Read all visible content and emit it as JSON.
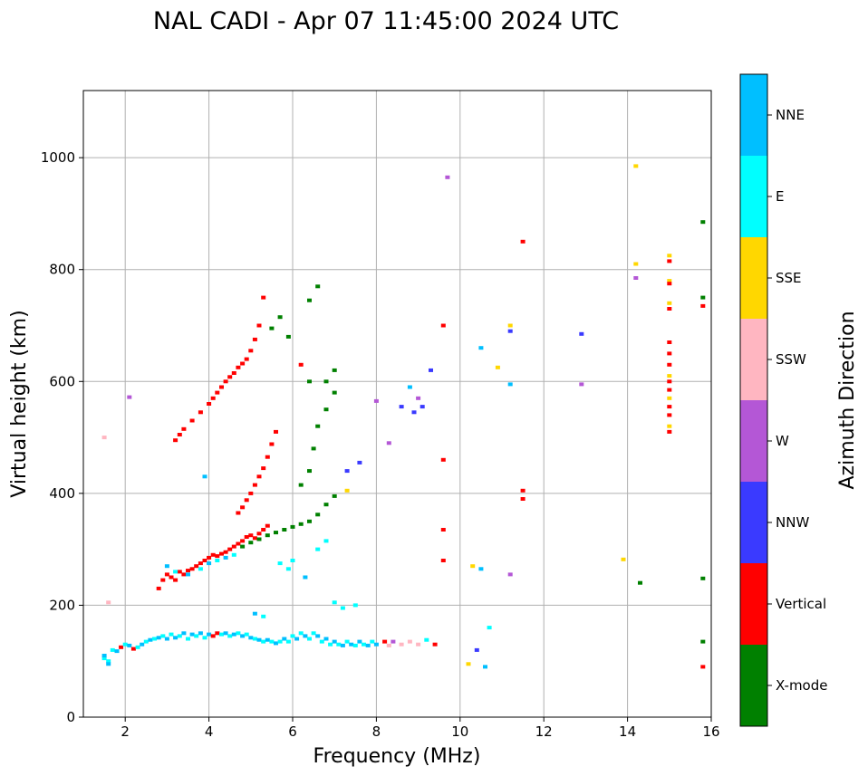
{
  "chart_data": {
    "type": "scatter",
    "title": "NAL CADI - Apr 07 11:45:00 2024 UTC",
    "xlabel": "Frequency (MHz)",
    "ylabel": "Virtual height (km)",
    "xlim": [
      1,
      16
    ],
    "ylim": [
      0,
      1120
    ],
    "grid": true,
    "x_ticks": [
      "2",
      "4",
      "6",
      "8",
      "10",
      "12",
      "14",
      "16"
    ],
    "y_ticks": [
      "0",
      "200",
      "400",
      "600",
      "800",
      "1000"
    ],
    "colorbar": {
      "label": "Azimuth Direction",
      "categories": [
        {
          "name": "X-mode",
          "color": "#008000"
        },
        {
          "name": "Vertical",
          "color": "#ff0000"
        },
        {
          "name": "NNW",
          "color": "#3a3aff"
        },
        {
          "name": "W",
          "color": "#b457d6"
        },
        {
          "name": "SSW",
          "color": "#ffb6c1"
        },
        {
          "name": "SSE",
          "color": "#ffd700"
        },
        {
          "name": "E",
          "color": "#00ffff"
        },
        {
          "name": "NNE",
          "color": "#00bfff"
        }
      ]
    },
    "points": [
      [
        1.5,
        105,
        "E"
      ],
      [
        1.5,
        110,
        "NNE"
      ],
      [
        1.6,
        100,
        "E"
      ],
      [
        1.6,
        95,
        "NNE"
      ],
      [
        1.7,
        120,
        "E"
      ],
      [
        1.8,
        118,
        "NNE"
      ],
      [
        1.9,
        125,
        "Vertical"
      ],
      [
        2.0,
        130,
        "E"
      ],
      [
        2.1,
        128,
        "NNE"
      ],
      [
        2.2,
        122,
        "Vertical"
      ],
      [
        2.3,
        125,
        "E"
      ],
      [
        2.4,
        130,
        "NNE"
      ],
      [
        2.5,
        135,
        "E"
      ],
      [
        2.6,
        138,
        "NNE"
      ],
      [
        2.7,
        140,
        "E"
      ],
      [
        2.8,
        142,
        "NNE"
      ],
      [
        2.9,
        145,
        "E"
      ],
      [
        3.0,
        140,
        "NNE"
      ],
      [
        3.1,
        148,
        "E"
      ],
      [
        3.2,
        142,
        "NNE"
      ],
      [
        3.3,
        145,
        "E"
      ],
      [
        3.4,
        150,
        "NNE"
      ],
      [
        3.5,
        140,
        "E"
      ],
      [
        3.6,
        148,
        "NNE"
      ],
      [
        3.7,
        145,
        "E"
      ],
      [
        3.8,
        150,
        "NNE"
      ],
      [
        3.9,
        142,
        "E"
      ],
      [
        4.0,
        148,
        "NNE"
      ],
      [
        4.1,
        145,
        "Vertical"
      ],
      [
        4.2,
        150,
        "Vertical"
      ],
      [
        4.3,
        148,
        "E"
      ],
      [
        4.4,
        150,
        "NNE"
      ],
      [
        4.5,
        145,
        "E"
      ],
      [
        4.6,
        148,
        "NNE"
      ],
      [
        4.7,
        150,
        "E"
      ],
      [
        4.8,
        145,
        "NNE"
      ],
      [
        4.9,
        148,
        "E"
      ],
      [
        5.0,
        142,
        "NNE"
      ],
      [
        5.1,
        140,
        "E"
      ],
      [
        5.2,
        138,
        "NNE"
      ],
      [
        5.3,
        135,
        "E"
      ],
      [
        5.4,
        138,
        "NNE"
      ],
      [
        5.5,
        135,
        "E"
      ],
      [
        5.6,
        132,
        "NNE"
      ],
      [
        5.7,
        135,
        "E"
      ],
      [
        5.8,
        140,
        "NNE"
      ],
      [
        5.9,
        135,
        "E"
      ],
      [
        6.0,
        145,
        "E"
      ],
      [
        6.1,
        140,
        "NNE"
      ],
      [
        6.2,
        150,
        "E"
      ],
      [
        6.3,
        145,
        "NNE"
      ],
      [
        6.4,
        140,
        "E"
      ],
      [
        6.5,
        150,
        "E"
      ],
      [
        6.6,
        145,
        "NNE"
      ],
      [
        6.7,
        135,
        "E"
      ],
      [
        6.8,
        140,
        "NNE"
      ],
      [
        6.9,
        130,
        "E"
      ],
      [
        7.0,
        135,
        "NNE"
      ],
      [
        7.1,
        130,
        "E"
      ],
      [
        7.2,
        128,
        "NNE"
      ],
      [
        7.3,
        135,
        "E"
      ],
      [
        7.4,
        130,
        "NNE"
      ],
      [
        7.5,
        128,
        "E"
      ],
      [
        7.6,
        135,
        "NNE"
      ],
      [
        7.7,
        130,
        "E"
      ],
      [
        7.8,
        128,
        "NNE"
      ],
      [
        7.9,
        135,
        "E"
      ],
      [
        8.0,
        130,
        "NNE"
      ],
      [
        8.2,
        135,
        "Vertical"
      ],
      [
        8.3,
        128,
        "SSW"
      ],
      [
        8.4,
        135,
        "W"
      ],
      [
        8.6,
        130,
        "SSW"
      ],
      [
        8.8,
        135,
        "SSW"
      ],
      [
        9.0,
        130,
        "SSW"
      ],
      [
        9.2,
        138,
        "E"
      ],
      [
        9.4,
        130,
        "Vertical"
      ],
      [
        2.8,
        230,
        "Vertical"
      ],
      [
        2.9,
        245,
        "Vertical"
      ],
      [
        3.0,
        255,
        "Vertical"
      ],
      [
        3.1,
        250,
        "Vertical"
      ],
      [
        3.2,
        245,
        "Vertical"
      ],
      [
        3.3,
        260,
        "Vertical"
      ],
      [
        3.4,
        255,
        "Vertical"
      ],
      [
        3.5,
        262,
        "Vertical"
      ],
      [
        3.6,
        265,
        "Vertical"
      ],
      [
        3.7,
        270,
        "Vertical"
      ],
      [
        3.8,
        275,
        "Vertical"
      ],
      [
        3.9,
        280,
        "Vertical"
      ],
      [
        4.0,
        285,
        "Vertical"
      ],
      [
        4.1,
        290,
        "Vertical"
      ],
      [
        4.2,
        288,
        "Vertical"
      ],
      [
        4.3,
        292,
        "Vertical"
      ],
      [
        4.4,
        295,
        "Vertical"
      ],
      [
        4.5,
        300,
        "Vertical"
      ],
      [
        4.6,
        305,
        "Vertical"
      ],
      [
        4.7,
        310,
        "Vertical"
      ],
      [
        4.8,
        315,
        "Vertical"
      ],
      [
        4.9,
        322,
        "Vertical"
      ],
      [
        5.0,
        325,
        "Vertical"
      ],
      [
        5.1,
        320,
        "Vertical"
      ],
      [
        5.2,
        328,
        "Vertical"
      ],
      [
        5.3,
        335,
        "Vertical"
      ],
      [
        5.4,
        342,
        "Vertical"
      ],
      [
        3.0,
        270,
        "NNE"
      ],
      [
        3.2,
        260,
        "E"
      ],
      [
        3.5,
        255,
        "NNE"
      ],
      [
        3.8,
        265,
        "E"
      ],
      [
        4.0,
        275,
        "NNE"
      ],
      [
        4.2,
        280,
        "E"
      ],
      [
        4.4,
        285,
        "NNE"
      ],
      [
        4.6,
        290,
        "E"
      ],
      [
        4.8,
        305,
        "X-mode"
      ],
      [
        5.0,
        312,
        "X-mode"
      ],
      [
        5.2,
        318,
        "X-mode"
      ],
      [
        5.4,
        325,
        "X-mode"
      ],
      [
        5.6,
        330,
        "X-mode"
      ],
      [
        5.8,
        335,
        "X-mode"
      ],
      [
        6.0,
        340,
        "X-mode"
      ],
      [
        6.2,
        345,
        "X-mode"
      ],
      [
        6.4,
        350,
        "X-mode"
      ],
      [
        6.6,
        362,
        "X-mode"
      ],
      [
        6.8,
        380,
        "X-mode"
      ],
      [
        7.0,
        395,
        "X-mode"
      ],
      [
        4.7,
        365,
        "Vertical"
      ],
      [
        4.8,
        375,
        "Vertical"
      ],
      [
        4.9,
        388,
        "Vertical"
      ],
      [
        5.0,
        400,
        "Vertical"
      ],
      [
        5.1,
        415,
        "Vertical"
      ],
      [
        5.2,
        430,
        "Vertical"
      ],
      [
        5.3,
        445,
        "Vertical"
      ],
      [
        5.4,
        465,
        "Vertical"
      ],
      [
        5.5,
        488,
        "Vertical"
      ],
      [
        5.6,
        510,
        "Vertical"
      ],
      [
        5.7,
        275,
        "E"
      ],
      [
        5.9,
        265,
        "E"
      ],
      [
        6.0,
        280,
        "E"
      ],
      [
        6.3,
        250,
        "NNE"
      ],
      [
        6.6,
        300,
        "E"
      ],
      [
        6.8,
        315,
        "E"
      ],
      [
        7.0,
        205,
        "E"
      ],
      [
        7.2,
        195,
        "E"
      ],
      [
        7.5,
        200,
        "E"
      ],
      [
        5.1,
        185,
        "NNE"
      ],
      [
        5.3,
        180,
        "E"
      ],
      [
        6.2,
        415,
        "X-mode"
      ],
      [
        6.4,
        440,
        "X-mode"
      ],
      [
        6.5,
        480,
        "X-mode"
      ],
      [
        6.6,
        520,
        "X-mode"
      ],
      [
        6.8,
        550,
        "X-mode"
      ],
      [
        7.0,
        580,
        "X-mode"
      ],
      [
        7.0,
        620,
        "X-mode"
      ],
      [
        6.8,
        600,
        "X-mode"
      ],
      [
        6.4,
        600,
        "X-mode"
      ],
      [
        6.2,
        630,
        "Vertical"
      ],
      [
        3.2,
        495,
        "Vertical"
      ],
      [
        3.3,
        505,
        "Vertical"
      ],
      [
        3.4,
        515,
        "Vertical"
      ],
      [
        3.6,
        530,
        "Vertical"
      ],
      [
        3.8,
        545,
        "Vertical"
      ],
      [
        4.0,
        560,
        "Vertical"
      ],
      [
        4.1,
        570,
        "Vertical"
      ],
      [
        4.2,
        580,
        "Vertical"
      ],
      [
        4.3,
        590,
        "Vertical"
      ],
      [
        4.4,
        600,
        "Vertical"
      ],
      [
        4.5,
        608,
        "Vertical"
      ],
      [
        4.6,
        615,
        "Vertical"
      ],
      [
        4.7,
        625,
        "Vertical"
      ],
      [
        4.8,
        632,
        "Vertical"
      ],
      [
        4.9,
        640,
        "Vertical"
      ],
      [
        5.0,
        655,
        "Vertical"
      ],
      [
        5.1,
        675,
        "Vertical"
      ],
      [
        5.2,
        700,
        "Vertical"
      ],
      [
        5.3,
        750,
        "Vertical"
      ],
      [
        5.5,
        695,
        "X-mode"
      ],
      [
        5.7,
        715,
        "X-mode"
      ],
      [
        6.4,
        745,
        "X-mode"
      ],
      [
        6.6,
        770,
        "X-mode"
      ],
      [
        5.9,
        680,
        "X-mode"
      ],
      [
        7.3,
        440,
        "NNW"
      ],
      [
        7.6,
        455,
        "NNW"
      ],
      [
        7.3,
        405,
        "SSE"
      ],
      [
        8.0,
        565,
        "W"
      ],
      [
        8.3,
        490,
        "W"
      ],
      [
        8.6,
        555,
        "NNW"
      ],
      [
        8.9,
        545,
        "NNW"
      ],
      [
        9.1,
        555,
        "NNW"
      ],
      [
        9.3,
        620,
        "NNW"
      ],
      [
        8.8,
        590,
        "NNE"
      ],
      [
        9.0,
        570,
        "W"
      ],
      [
        9.7,
        965,
        "W"
      ],
      [
        9.6,
        700,
        "Vertical"
      ],
      [
        9.6,
        460,
        "Vertical"
      ],
      [
        9.6,
        335,
        "Vertical"
      ],
      [
        9.6,
        280,
        "Vertical"
      ],
      [
        10.2,
        95,
        "SSE"
      ],
      [
        10.3,
        270,
        "SSE"
      ],
      [
        10.5,
        265,
        "NNE"
      ],
      [
        10.6,
        90,
        "NNE"
      ],
      [
        10.7,
        160,
        "E"
      ],
      [
        10.4,
        120,
        "NNW"
      ],
      [
        10.5,
        660,
        "NNE"
      ],
      [
        10.9,
        625,
        "SSE"
      ],
      [
        11.2,
        700,
        "SSE"
      ],
      [
        11.2,
        690,
        "NNW"
      ],
      [
        11.2,
        595,
        "NNE"
      ],
      [
        11.2,
        255,
        "W"
      ],
      [
        11.5,
        850,
        "Vertical"
      ],
      [
        11.5,
        405,
        "Vertical"
      ],
      [
        11.5,
        390,
        "Vertical"
      ],
      [
        12.9,
        685,
        "NNW"
      ],
      [
        12.9,
        595,
        "W"
      ],
      [
        14.2,
        985,
        "SSE"
      ],
      [
        14.2,
        810,
        "SSE"
      ],
      [
        14.2,
        785,
        "W"
      ],
      [
        13.9,
        282,
        "SSE"
      ],
      [
        14.3,
        240,
        "X-mode"
      ],
      [
        15.0,
        825,
        "SSE"
      ],
      [
        15.0,
        815,
        "Vertical"
      ],
      [
        15.0,
        780,
        "SSE"
      ],
      [
        15.0,
        775,
        "Vertical"
      ],
      [
        15.0,
        740,
        "SSE"
      ],
      [
        15.0,
        730,
        "Vertical"
      ],
      [
        15.0,
        670,
        "Vertical"
      ],
      [
        15.0,
        650,
        "Vertical"
      ],
      [
        15.0,
        630,
        "Vertical"
      ],
      [
        15.0,
        610,
        "SSE"
      ],
      [
        15.0,
        600,
        "Vertical"
      ],
      [
        15.0,
        585,
        "Vertical"
      ],
      [
        15.0,
        570,
        "SSE"
      ],
      [
        15.0,
        555,
        "Vertical"
      ],
      [
        15.0,
        540,
        "Vertical"
      ],
      [
        15.0,
        520,
        "SSE"
      ],
      [
        15.0,
        510,
        "Vertical"
      ],
      [
        15.8,
        885,
        "X-mode"
      ],
      [
        15.8,
        750,
        "X-mode"
      ],
      [
        15.8,
        735,
        "Vertical"
      ],
      [
        15.8,
        248,
        "X-mode"
      ],
      [
        15.8,
        135,
        "X-mode"
      ],
      [
        15.8,
        90,
        "Vertical"
      ],
      [
        1.5,
        500,
        "SSW"
      ],
      [
        2.1,
        572,
        "W"
      ],
      [
        1.6,
        205,
        "SSW"
      ],
      [
        3.9,
        430,
        "NNE"
      ]
    ]
  }
}
